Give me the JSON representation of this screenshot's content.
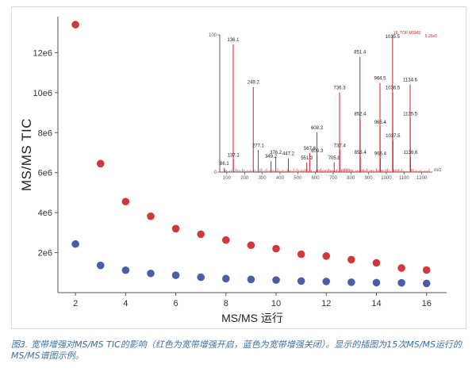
{
  "caption": "图3. 宽带增强对MS/MS TIC的影响（红色为宽带增强开启，蓝色为宽带增强关闭）。显示的插图为15次MS/MS运行的MS/MS谱图示例。",
  "colors": {
    "red": "#d0393c",
    "blue": "#4a5ea8",
    "inset_red": "#d0202a"
  },
  "chart_data": [
    {
      "type": "scatter",
      "title": "",
      "xlabel": "MS/MS 运行",
      "ylabel": "MS/MS TIC",
      "xlim": [
        1.3,
        16.8
      ],
      "ylim": [
        0,
        13800000
      ],
      "xticks": [
        2,
        4,
        6,
        8,
        10,
        12,
        14,
        16
      ],
      "yticks": [
        {
          "value": 2000000,
          "label": "2e6"
        },
        {
          "value": 4000000,
          "label": "4e6"
        },
        {
          "value": 6000000,
          "label": "6e6"
        },
        {
          "value": 8000000,
          "label": "8e6"
        },
        {
          "value": 10000000,
          "label": "10e6"
        },
        {
          "value": 12000000,
          "label": "12e6"
        }
      ],
      "x": [
        2,
        3,
        4,
        5,
        6,
        7,
        8,
        9,
        10,
        11,
        12,
        13,
        14,
        15,
        16
      ],
      "series": [
        {
          "color": "red",
          "values": [
            13400000,
            6450000,
            4550000,
            3820000,
            3200000,
            2920000,
            2630000,
            2370000,
            2200000,
            1920000,
            1830000,
            1650000,
            1490000,
            1230000,
            1130000
          ]
        },
        {
          "color": "blue",
          "values": [
            2430000,
            1360000,
            1120000,
            960000,
            870000,
            770000,
            700000,
            660000,
            630000,
            580000,
            560000,
            520000,
            500000,
            490000,
            460000
          ]
        }
      ],
      "grid": false,
      "legend": "none"
    },
    {
      "type": "bar",
      "title": "",
      "xlabel": "m/z",
      "ylim": [
        0,
        100
      ],
      "yticks": [
        0,
        100
      ],
      "xlim": [
        60,
        1260
      ],
      "xticks": [
        100,
        200,
        300,
        400,
        500,
        600,
        700,
        800,
        900,
        1000,
        1100,
        1200
      ],
      "red_labels": [
        "16: TOF MSMS",
        "5.26e5"
      ],
      "peaks": [
        {
          "mz": 86.1,
          "intensity": 3,
          "label": "86.1"
        },
        {
          "mz": 136.1,
          "intensity": 93,
          "label": "136.1"
        },
        {
          "mz": 137.1,
          "intensity": 9,
          "label": "137.1"
        },
        {
          "mz": 249.2,
          "intensity": 62,
          "label": "249.2"
        },
        {
          "mz": 277.1,
          "intensity": 16,
          "label": "277.1"
        },
        {
          "mz": 349.2,
          "intensity": 8,
          "label": "349.2"
        },
        {
          "mz": 376.2,
          "intensity": 11,
          "label": "376.2"
        },
        {
          "mz": 447.2,
          "intensity": 10,
          "label": "447.2"
        },
        {
          "mz": 551.3,
          "intensity": 7,
          "label": "551.3"
        },
        {
          "mz": 567.8,
          "intensity": 14,
          "label": "567.8"
        },
        {
          "mz": 608.3,
          "intensity": 29,
          "label": "608.3"
        },
        {
          "mz": 609.3,
          "intensity": 12,
          "label": "609.3"
        },
        {
          "mz": 705.8,
          "intensity": 7,
          "label": "705.8"
        },
        {
          "mz": 736.3,
          "intensity": 58,
          "label": "736.3"
        },
        {
          "mz": 737.4,
          "intensity": 16,
          "label": "737.4"
        },
        {
          "mz": 851.4,
          "intensity": 84,
          "label": "851.4"
        },
        {
          "mz": 852.4,
          "intensity": 39,
          "label": "852.4"
        },
        {
          "mz": 853.4,
          "intensity": 11,
          "label": "853.4"
        },
        {
          "mz": 964.5,
          "intensity": 65,
          "label": "964.5"
        },
        {
          "mz": 965.4,
          "intensity": 33,
          "label": "965.4"
        },
        {
          "mz": 966.4,
          "intensity": 10,
          "label": "966.4"
        },
        {
          "mz": 1035.5,
          "intensity": 100,
          "label": "1035.5"
        },
        {
          "mz": 1036.5,
          "intensity": 58,
          "label": "1036.5"
        },
        {
          "mz": 1037.5,
          "intensity": 23,
          "label": "1037.5"
        },
        {
          "mz": 1134.6,
          "intensity": 64,
          "label": "1134.6"
        },
        {
          "mz": 1135.5,
          "intensity": 39,
          "label": "1135.5"
        },
        {
          "mz": 1136.6,
          "intensity": 11,
          "label": "1136.6"
        }
      ]
    }
  ]
}
